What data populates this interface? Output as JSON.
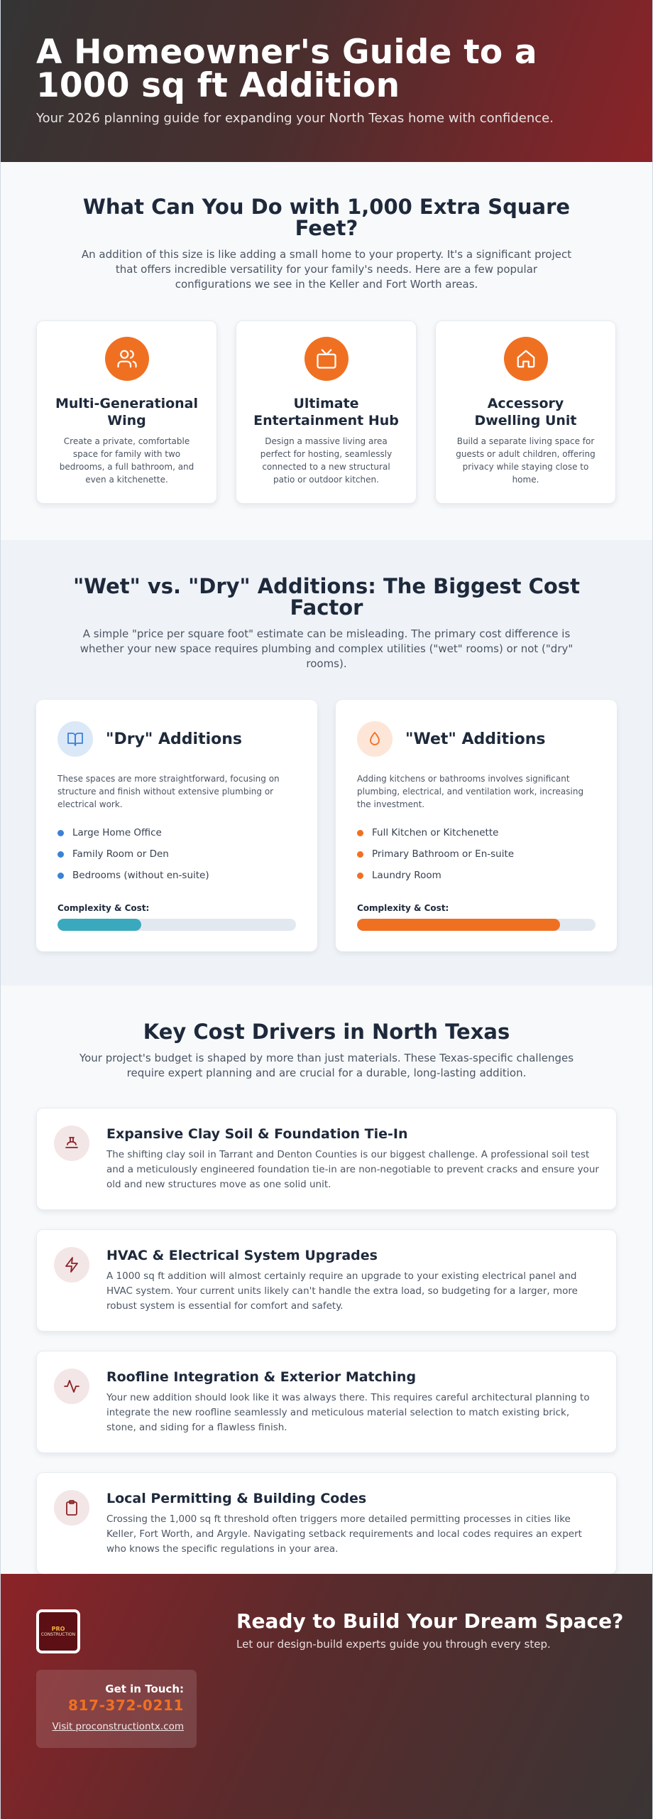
{
  "hero": {
    "title": "A Homeowner's Guide to a 1000 sq ft Addition",
    "subtitle": "Your 2026 planning guide for expanding your North Texas home with confidence."
  },
  "uses": {
    "title": "What Can You Do with 1,000 Extra Square Feet?",
    "intro": "An addition of this size is like adding a small home to your property. It's a significant project that offers incredible versatility for your family's needs. Here are a few popular configurations we see in the Keller and Fort Worth areas.",
    "cards": [
      {
        "icon": "users-icon",
        "title": "Multi-Generational Wing",
        "text": "Create a private, comfortable space for family with two bedrooms, a full bathroom, and even a kitchenette."
      },
      {
        "icon": "tv-icon",
        "title": "Ultimate Entertainment Hub",
        "text": "Design a massive living area perfect for hosting, seamlessly connected to a new structural patio or outdoor kitchen."
      },
      {
        "icon": "home-icon",
        "title": "Accessory Dwelling Unit",
        "text": "Build a separate living space for guests or adult children, offering privacy while staying close to home."
      }
    ]
  },
  "wetdry": {
    "title": "\"Wet\" vs. \"Dry\" Additions: The Biggest Cost Factor",
    "intro": "A simple \"price per square foot\" estimate can be misleading. The primary cost difference is whether your new space requires plumbing and complex utilities (\"wet\" rooms) or not (\"dry\" rooms).",
    "dry": {
      "title": "\"Dry\" Additions",
      "icon": "book-open-icon",
      "desc": "These spaces are more straightforward, focusing on structure and finish without extensive plumbing or electrical work.",
      "items": [
        "Large Home Office",
        "Family Room or Den",
        "Bedrooms (without en-suite)"
      ],
      "complexity_label": "Complexity & Cost:",
      "complexity": 0.35,
      "color": "#3aa9bd",
      "dot_color": "#3b82d6"
    },
    "wet": {
      "title": "\"Wet\" Additions",
      "icon": "droplet-icon",
      "desc": "Adding kitchens or bathrooms involves significant plumbing, electrical, and ventilation work, increasing the investment.",
      "items": [
        "Full Kitchen or Kitchenette",
        "Primary Bathroom or En-suite",
        "Laundry Room"
      ],
      "complexity_label": "Complexity & Cost:",
      "complexity": 0.85,
      "color": "#f07022",
      "dot_color": "#f07022"
    }
  },
  "drivers": {
    "title": "Key Cost Drivers in North Texas",
    "intro": "Your project's budget is shaped by more than just materials. These Texas-specific challenges require expert planning and are crucial for a durable, long-lasting addition.",
    "items": [
      {
        "icon": "foundation-icon",
        "title": "Expansive Clay Soil & Foundation Tie-In",
        "text": "The shifting clay soil in Tarrant and Denton Counties is our biggest challenge. A professional soil test and a meticulously engineered foundation tie-in are non-negotiable to prevent cracks and ensure your old and new structures move as one solid unit."
      },
      {
        "icon": "lightning-icon",
        "title": "HVAC & Electrical System Upgrades",
        "text": "A 1000 sq ft addition will almost certainly require an upgrade to your existing electrical panel and HVAC system. Your current units likely can't handle the extra load, so budgeting for a larger, more robust system is essential for comfort and safety."
      },
      {
        "icon": "activity-icon",
        "title": "Roofline Integration & Exterior Matching",
        "text": "Your new addition should look like it was always there. This requires careful architectural planning to integrate the new roofline seamlessly and meticulous material selection to match existing brick, stone, and siding for a flawless finish."
      },
      {
        "icon": "clipboard-icon",
        "title": "Local Permitting & Building Codes",
        "text": "Crossing the 1,000 sq ft threshold often triggers more detailed permitting processes in cities like Keller, Fort Worth, and Argyle. Navigating setback requirements and local codes requires an expert who knows the specific regulations in your area."
      }
    ]
  },
  "footer": {
    "logo_line1": "PRO",
    "logo_line2": "CONSTRUCTION",
    "cta_title": "Ready to Build Your Dream Space?",
    "cta_subtitle": "Let our design-build experts guide you through every step.",
    "contact_label": "Get in Touch:",
    "phone": "817-372-0211",
    "website": "Visit proconstructiontx.com"
  },
  "colors": {
    "accent": "#f07022",
    "brand_dark_red": "#8b2328"
  }
}
